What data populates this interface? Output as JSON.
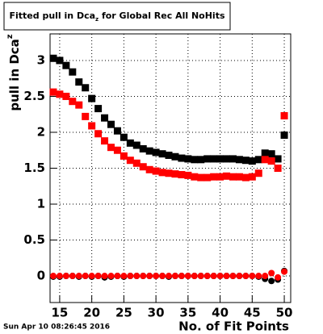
{
  "chart_data": {
    "type": "scatter",
    "title": [
      "Fitted pull in Dca",
      "z",
      " for Global Rec All NoHits"
    ],
    "ylabel": [
      "pull in Dca",
      "z"
    ],
    "xlabel": "No. of Fit Points",
    "timestamp": "Sun Apr 10 08:26:45 2016",
    "x": [
      14,
      15,
      16,
      17,
      18,
      19,
      20,
      21,
      22,
      23,
      24,
      25,
      26,
      27,
      28,
      29,
      30,
      31,
      32,
      33,
      34,
      35,
      36,
      37,
      38,
      39,
      40,
      41,
      42,
      43,
      44,
      45,
      46,
      47,
      48,
      49,
      50
    ],
    "series": [
      {
        "color": "#000000",
        "marker": "square",
        "values": [
          3.03,
          3.0,
          2.93,
          2.84,
          2.7,
          2.62,
          2.47,
          2.33,
          2.2,
          2.11,
          2.02,
          1.93,
          1.85,
          1.82,
          1.77,
          1.74,
          1.72,
          1.7,
          1.68,
          1.66,
          1.64,
          1.63,
          1.62,
          1.62,
          1.63,
          1.63,
          1.63,
          1.63,
          1.63,
          1.62,
          1.61,
          1.6,
          1.62,
          1.71,
          1.7,
          1.63,
          1.96
        ]
      },
      {
        "color": "#ff0000",
        "marker": "square",
        "values": [
          2.56,
          2.53,
          2.5,
          2.43,
          2.38,
          2.22,
          2.09,
          1.98,
          1.88,
          1.79,
          1.75,
          1.67,
          1.61,
          1.57,
          1.52,
          1.48,
          1.46,
          1.44,
          1.43,
          1.42,
          1.41,
          1.4,
          1.38,
          1.37,
          1.37,
          1.38,
          1.38,
          1.39,
          1.38,
          1.38,
          1.37,
          1.38,
          1.43,
          1.62,
          1.6,
          1.5,
          2.23
        ]
      },
      {
        "color": "#000000",
        "marker": "circle",
        "values": [
          -0.01,
          -0.01,
          0.0,
          0.0,
          -0.01,
          0.0,
          -0.01,
          0.0,
          -0.02,
          -0.01,
          0.0,
          -0.01,
          0.0,
          0.0,
          0.0,
          0.0,
          0.0,
          0.0,
          -0.01,
          0.0,
          0.0,
          0.0,
          0.0,
          0.0,
          0.0,
          0.0,
          0.0,
          0.0,
          0.0,
          0.0,
          0.0,
          0.0,
          -0.01,
          -0.04,
          -0.07,
          -0.05,
          0.07
        ]
      },
      {
        "color": "#ff0000",
        "marker": "circle",
        "values": [
          0.0,
          0.0,
          0.0,
          0.0,
          0.0,
          0.0,
          0.0,
          0.0,
          0.0,
          0.0,
          0.0,
          0.0,
          0.0,
          0.0,
          0.0,
          0.0,
          0.0,
          0.0,
          0.0,
          0.0,
          0.0,
          0.0,
          0.0,
          0.0,
          0.0,
          0.0,
          0.0,
          0.0,
          0.0,
          0.0,
          0.0,
          0.0,
          0.0,
          0.0,
          0.04,
          -0.02,
          0.06
        ]
      }
    ],
    "xlim": [
      13.5,
      51
    ],
    "xticks": [
      15,
      20,
      25,
      30,
      35,
      40,
      45,
      50
    ],
    "ylim": [
      -0.37,
      3.37
    ],
    "yticks": [
      0,
      0.5,
      1,
      1.5,
      2,
      2.5,
      3
    ],
    "grid": true
  }
}
